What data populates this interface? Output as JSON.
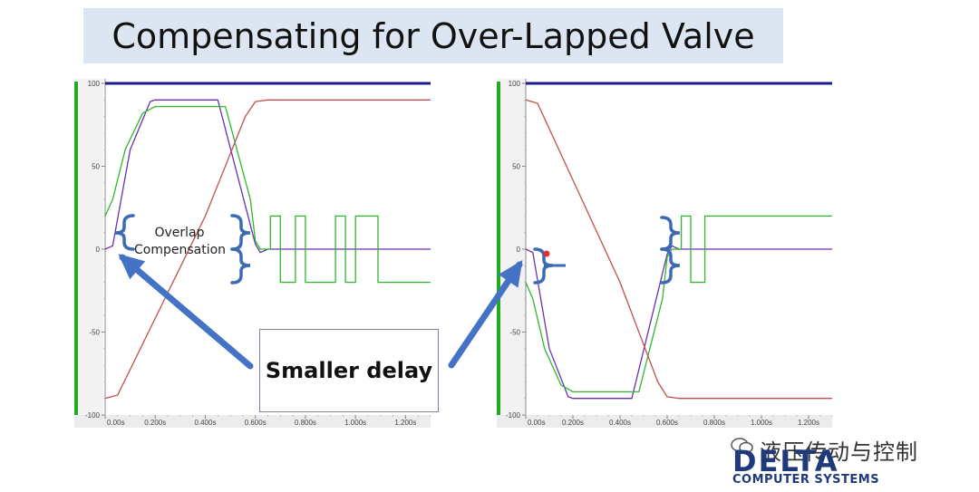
{
  "title": "Compensating for Over-Lapped Valve",
  "callout": {
    "text": "Smaller delay"
  },
  "annotation": {
    "line1": "Overlap",
    "line2": "Compensation"
  },
  "watermark": {
    "text": "液压传动与控制"
  },
  "logo": {
    "main": "DELTA",
    "sub": "COMPUTER SYSTEMS"
  },
  "colors": {
    "green": "#2db82d",
    "blue": "#1a1a8c",
    "red": "#c0504d",
    "purple": "#6a2fb0",
    "bracket": "#3c6ab4",
    "arrow": "#4472c4"
  },
  "chart_data": [
    {
      "type": "line",
      "ylim": [
        -100,
        100
      ],
      "xlim": [
        0,
        1.3
      ],
      "y_ticks": [
        "100",
        "50",
        "0",
        "-50",
        "-100"
      ],
      "x_ticks": [
        "0.00s",
        "0.200s",
        "0.400s",
        "0.600s",
        "0.800s",
        "1.000s",
        "1.200s"
      ],
      "series": [
        {
          "color": "#1a1a8c",
          "x": [
            0,
            1.3
          ],
          "y": [
            100,
            100
          ]
        },
        {
          "color": "#6a2fb0",
          "x": [
            0,
            0.03,
            0.1,
            0.18,
            0.2,
            0.45,
            0.55,
            0.6,
            0.62,
            0.65,
            0.7,
            1.3
          ],
          "y": [
            0,
            2,
            60,
            89,
            90,
            90,
            32,
            3,
            -2,
            0,
            0,
            0
          ]
        },
        {
          "color": "#2db82d",
          "x": [
            0,
            0.03,
            0.08,
            0.15,
            0.2,
            0.48,
            0.58,
            0.6,
            0.62,
            0.66,
            0.66,
            0.7,
            0.7,
            0.76,
            0.76,
            0.8,
            0.8,
            0.92,
            0.92,
            0.96,
            0.96,
            1.0,
            1.0,
            1.09,
            1.09,
            1.2,
            1.2,
            1.3
          ],
          "y": [
            20,
            30,
            60,
            82,
            86,
            86,
            30,
            5,
            0,
            0,
            20,
            20,
            -20,
            -20,
            20,
            20,
            -20,
            -20,
            20,
            20,
            -20,
            -20,
            20,
            20,
            -20,
            -20,
            -20,
            -20
          ]
        },
        {
          "color": "#c0504d",
          "x": [
            0,
            0.05,
            0.4,
            0.56,
            0.6,
            0.65,
            1.3
          ],
          "y": [
            -90,
            -88,
            20,
            80,
            89,
            90,
            90
          ]
        }
      ]
    },
    {
      "type": "line",
      "ylim": [
        -100,
        100
      ],
      "xlim": [
        0,
        1.3
      ],
      "y_ticks": [
        "100",
        "50",
        "0",
        "-50",
        "-100"
      ],
      "x_ticks": [
        "0.00s",
        "0.200s",
        "0.400s",
        "0.600s",
        "0.800s",
        "1.000s",
        "1.200s"
      ],
      "series": [
        {
          "color": "#1a1a8c",
          "x": [
            0,
            1.3
          ],
          "y": [
            100,
            100
          ]
        },
        {
          "color": "#6a2fb0",
          "x": [
            0,
            0.03,
            0.1,
            0.18,
            0.2,
            0.45,
            0.55,
            0.6,
            0.62,
            0.65,
            0.7,
            1.3
          ],
          "y": [
            0,
            -2,
            -60,
            -89,
            -90,
            -90,
            -32,
            -3,
            2,
            0,
            0,
            0
          ]
        },
        {
          "color": "#2db82d",
          "x": [
            0,
            0.03,
            0.08,
            0.15,
            0.2,
            0.48,
            0.58,
            0.6,
            0.62,
            0.66,
            0.66,
            0.7,
            0.7,
            0.76,
            0.76,
            0.8,
            0.8,
            0.92,
            0.92,
            0.96,
            0.96,
            1.0,
            1.0,
            1.09,
            1.09,
            1.2,
            1.2,
            1.3
          ],
          "y": [
            -20,
            -30,
            -60,
            -82,
            -86,
            -86,
            -30,
            -5,
            0,
            0,
            20,
            20,
            -20,
            -20,
            20,
            20,
            20,
            20,
            20,
            20,
            20,
            20,
            20,
            20,
            20,
            20,
            20,
            20
          ]
        },
        {
          "color": "#c0504d",
          "x": [
            0,
            0.05,
            0.4,
            0.56,
            0.6,
            0.65,
            1.3
          ],
          "y": [
            90,
            88,
            -20,
            -80,
            -89,
            -90,
            -90
          ]
        }
      ]
    }
  ]
}
